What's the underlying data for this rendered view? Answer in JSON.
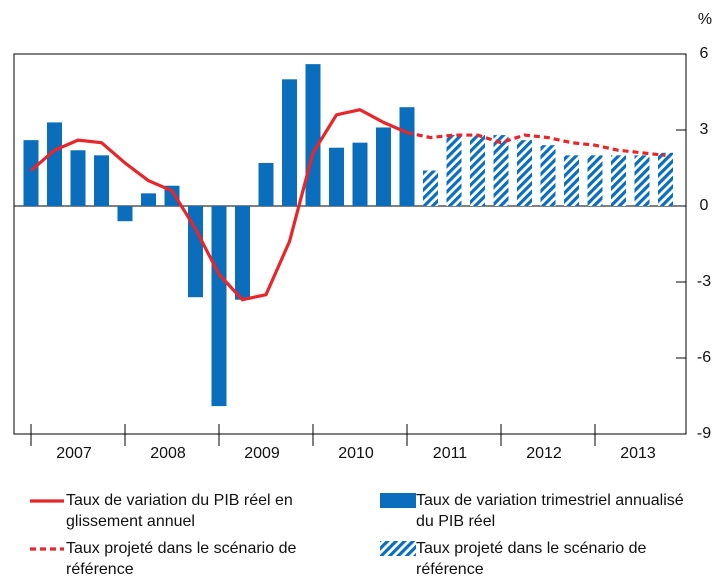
{
  "chart_data": {
    "type": "bar",
    "y_unit": "%",
    "ylim": [
      -9,
      6
    ],
    "yticks": [
      6,
      3,
      0,
      -3,
      -6,
      -9
    ],
    "year_labels": [
      "2007",
      "2008",
      "2009",
      "2010",
      "2011",
      "2012",
      "2013"
    ],
    "series": [
      {
        "name": "Taux de variation trimestriel annualisé du PIB réel",
        "type": "bar",
        "style": "solid",
        "color": "#0a6ebd",
        "values": [
          2.6,
          3.3,
          2.2,
          2.0,
          -0.6,
          0.5,
          0.8,
          -3.6,
          -7.9,
          -3.7,
          1.7,
          5.0,
          5.6,
          2.3,
          2.5,
          3.1,
          3.9,
          null,
          null,
          null,
          null,
          null,
          null,
          null,
          null,
          null,
          null,
          null
        ]
      },
      {
        "name": "Taux projeté dans le scénario de référence",
        "type": "bar",
        "style": "hatched",
        "color": "#0a6ebd",
        "values": [
          null,
          null,
          null,
          null,
          null,
          null,
          null,
          null,
          null,
          null,
          null,
          null,
          null,
          null,
          null,
          null,
          null,
          1.4,
          2.8,
          2.8,
          2.8,
          2.6,
          2.4,
          2.0,
          2.0,
          2.0,
          2.0,
          2.1
        ]
      },
      {
        "name": "Taux de variation du PIB réel en glissement annuel",
        "type": "line",
        "style": "solid",
        "color": "#e8262a",
        "values": [
          1.4,
          2.2,
          2.6,
          2.5,
          1.7,
          1.0,
          0.6,
          -0.9,
          -2.7,
          -3.7,
          -3.5,
          -1.4,
          2.1,
          3.6,
          3.8,
          3.3,
          2.9,
          null,
          null,
          null,
          null,
          null,
          null,
          null,
          null,
          null,
          null,
          null
        ]
      },
      {
        "name": "Taux projeté dans le scénario de référence",
        "type": "line",
        "style": "dashed",
        "color": "#e8262a",
        "values": [
          null,
          null,
          null,
          null,
          null,
          null,
          null,
          null,
          null,
          null,
          null,
          null,
          null,
          null,
          null,
          null,
          2.9,
          2.7,
          2.8,
          2.8,
          2.5,
          2.8,
          2.7,
          2.5,
          2.4,
          2.2,
          2.1,
          2.0
        ]
      }
    ],
    "legend": [
      2,
      0,
      3,
      1
    ]
  }
}
